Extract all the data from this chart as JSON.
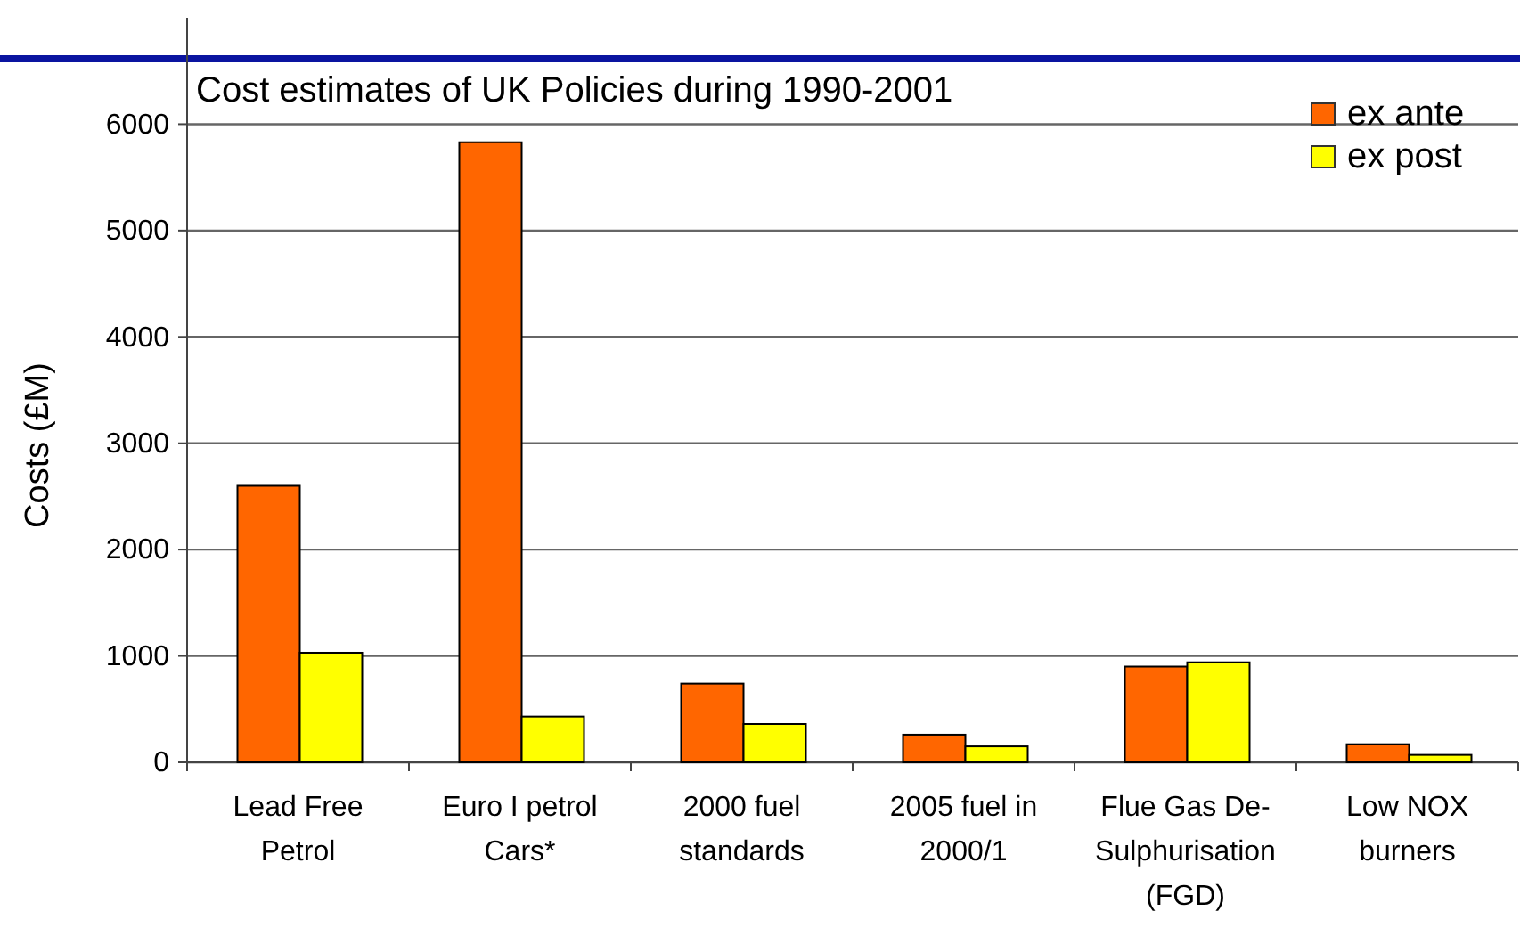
{
  "chart_data": {
    "type": "bar",
    "title": "Cost estimates of UK Policies during 1990-2001",
    "ylabel": "Costs (£M)",
    "categories": [
      "Lead Free Petrol",
      "Euro I petrol Cars*",
      "2000 fuel standards",
      "2005 fuel in 2000/1",
      "Flue Gas De-Sulphurisation (FGD)",
      "Low NOX burners"
    ],
    "series": [
      {
        "name": "ex ante",
        "color": "#ff6600",
        "values": [
          2600,
          5830,
          740,
          260,
          900,
          170
        ]
      },
      {
        "name": "ex post",
        "color": "#ffff00",
        "values": [
          1030,
          430,
          360,
          150,
          940,
          70
        ]
      }
    ],
    "ylim": [
      0,
      7000
    ],
    "yticks": [
      0,
      1000,
      2000,
      3000,
      4000,
      5000,
      6000
    ],
    "grid": "y",
    "legend": "top right"
  }
}
